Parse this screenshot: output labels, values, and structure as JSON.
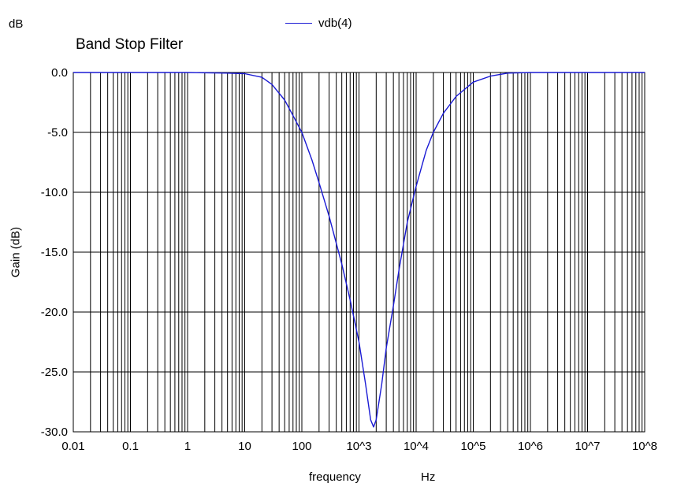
{
  "unit_label": "dB",
  "chart_data": {
    "type": "line",
    "title": "Band Stop Filter",
    "xlabel": "frequency",
    "xunit": "Hz",
    "ylabel": "Gain (dB)",
    "xscale": "log",
    "xlim": [
      0.01,
      100000000
    ],
    "ylim": [
      -30,
      0
    ],
    "grid": true,
    "legend_position": "top-center",
    "x_tick_labels": [
      "0.01",
      "0.1",
      "1",
      "10",
      "100",
      "10^3",
      "10^4",
      "10^5",
      "10^6",
      "10^7",
      "10^8"
    ],
    "y_tick_labels": [
      "0.0",
      "-5.0",
      "-10.0",
      "-15.0",
      "-20.0",
      "-25.0",
      "-30.0"
    ],
    "y_ticks": [
      0,
      -5,
      -10,
      -15,
      -20,
      -25,
      -30
    ],
    "series": [
      {
        "name": "vdb(4)",
        "color": "#1a1ad4",
        "x": [
          0.01,
          1,
          5,
          10,
          20,
          30,
          50,
          70,
          100,
          150,
          200,
          300,
          500,
          700,
          1000,
          1300,
          1600,
          1800,
          2000,
          2500,
          3000,
          4000,
          5000,
          7000,
          10000,
          15000,
          20000,
          30000,
          50000,
          100000,
          200000,
          400000,
          1000000,
          10000000,
          100000000
        ],
        "y": [
          0,
          0,
          -0.05,
          -0.1,
          -0.4,
          -1.0,
          -2.3,
          -3.6,
          -5.0,
          -7.3,
          -9.2,
          -12.0,
          -16.0,
          -19.0,
          -22.5,
          -26.0,
          -29.0,
          -29.6,
          -29.0,
          -26.0,
          -23.0,
          -19.5,
          -16.5,
          -12.5,
          -9.5,
          -6.5,
          -5.0,
          -3.4,
          -2.0,
          -0.8,
          -0.3,
          -0.05,
          0,
          0,
          0
        ]
      }
    ]
  }
}
